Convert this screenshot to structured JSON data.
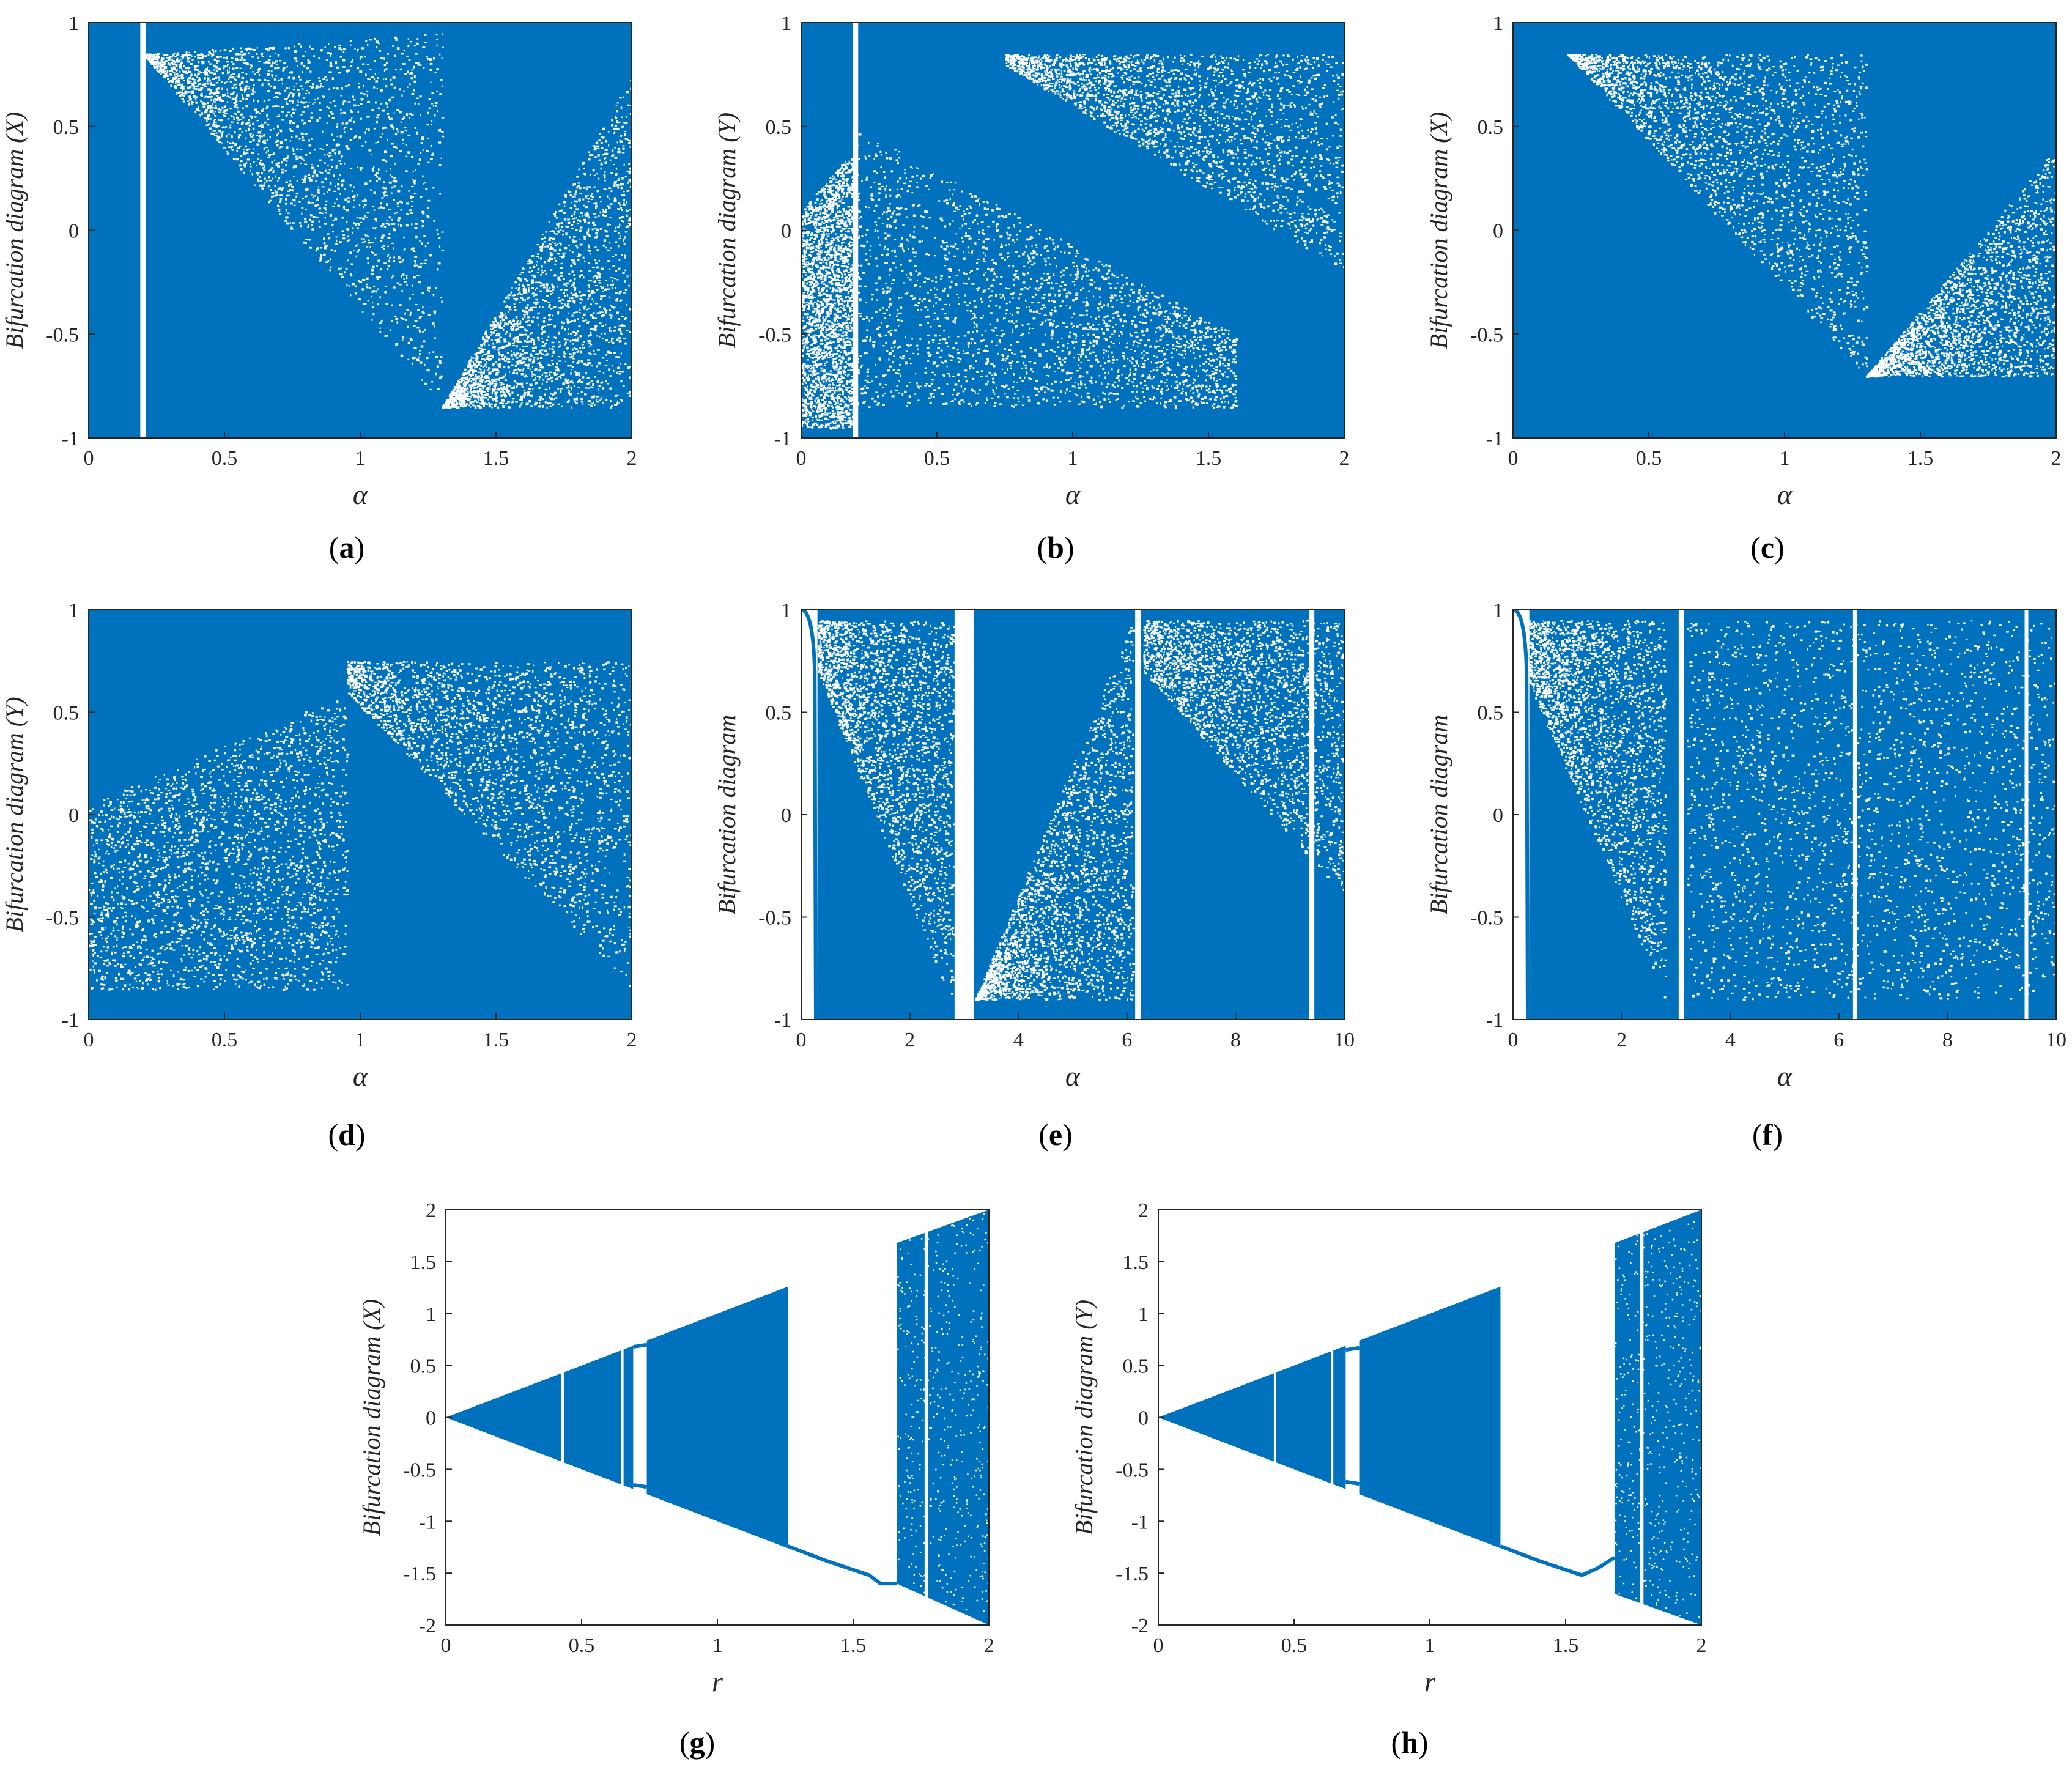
{
  "colors": {
    "points": "#0072bd",
    "gap": "#ffffff",
    "axis": "#262626"
  },
  "chart_data": [
    {
      "id": "a",
      "caption_letter": "a",
      "type": "scatter",
      "ylabel": "Bifurcation diagram (X)",
      "xlabel": "α",
      "xlim": [
        0,
        2
      ],
      "ylim": [
        -1,
        1
      ],
      "xticks": [
        "0",
        "0.5",
        "1",
        "1.5",
        "2"
      ],
      "yticks": [
        "-1",
        "-0.5",
        "0",
        "0.5",
        "1"
      ],
      "dense_range_x": [
        0,
        2
      ],
      "dense_range_y": [
        -1,
        1
      ],
      "gaps_x": [
        0.2
      ],
      "lighter_regions": [
        {
          "x": [
            0.2,
            1.3
          ],
          "y_top": [
            0.85,
            0.95
          ],
          "y_bottom": [
            0.85,
            -0.85
          ]
        },
        {
          "x": [
            1.3,
            2.0
          ],
          "y_top": [
            -0.85,
            0.75
          ],
          "y_bottom": [
            -0.85,
            -0.85
          ]
        }
      ]
    },
    {
      "id": "b",
      "caption_letter": "b",
      "type": "scatter",
      "ylabel": "Bifurcation diagram (Y)",
      "xlabel": "α",
      "xlim": [
        0,
        2
      ],
      "ylim": [
        -1,
        1
      ],
      "xticks": [
        "0",
        "0.5",
        "1",
        "1.5",
        "2"
      ],
      "yticks": [
        "-1",
        "-0.5",
        "0",
        "0.5",
        "1"
      ],
      "gaps_x": [
        0.2
      ],
      "lighter_regions": [
        {
          "x": [
            0.0,
            0.2
          ],
          "y_top": [
            0.1,
            0.4
          ],
          "y_bottom": [
            -0.95,
            -0.95
          ]
        },
        {
          "x": [
            0.75,
            2.0
          ],
          "y_top": [
            0.85,
            0.85
          ],
          "y_bottom": [
            0.8,
            -0.2
          ]
        },
        {
          "x": [
            0.2,
            1.6
          ],
          "y_top": [
            0.5,
            -0.5
          ],
          "y_bottom": [
            -0.85,
            -0.85
          ]
        }
      ]
    },
    {
      "id": "c",
      "caption_letter": "c",
      "type": "scatter",
      "ylabel": "Bifurcation diagram (X)",
      "xlabel": "α",
      "xlim": [
        0,
        2
      ],
      "ylim": [
        -1,
        1
      ],
      "xticks": [
        "0",
        "0.5",
        "1",
        "1.5",
        "2"
      ],
      "yticks": [
        "-1",
        "-0.5",
        "0",
        "0.5",
        "1"
      ],
      "gaps_x": [],
      "lighter_regions": [
        {
          "x": [
            0.2,
            1.3
          ],
          "y_top": [
            0.85,
            0.85
          ],
          "y_bottom": [
            0.85,
            -0.7
          ]
        },
        {
          "x": [
            1.3,
            2.0
          ],
          "y_top": [
            -0.7,
            0.4
          ],
          "y_bottom": [
            -0.7,
            -0.7
          ]
        }
      ]
    },
    {
      "id": "d",
      "caption_letter": "d",
      "type": "scatter",
      "ylabel": "Bifurcation diagram (Y)",
      "xlabel": "α",
      "xlim": [
        0,
        2
      ],
      "ylim": [
        -1,
        1
      ],
      "xticks": [
        "0",
        "0.5",
        "1",
        "1.5",
        "2"
      ],
      "yticks": [
        "-1",
        "-0.5",
        "0",
        "0.5",
        "1"
      ],
      "gaps_x": [],
      "lighter_regions": [
        {
          "x": [
            0.0,
            0.95
          ],
          "y_top": [
            0.05,
            0.6
          ],
          "y_bottom": [
            -0.85,
            -0.85
          ]
        },
        {
          "x": [
            0.95,
            2.0
          ],
          "y_top": [
            0.75,
            0.75
          ],
          "y_bottom": [
            0.6,
            -0.85
          ]
        }
      ]
    },
    {
      "id": "e",
      "caption_letter": "e",
      "type": "scatter",
      "ylabel": "Bifurcation diagram",
      "xlabel": "α",
      "xlim": [
        0,
        10
      ],
      "ylim": [
        -1,
        1
      ],
      "xticks": [
        "0",
        "2",
        "4",
        "6",
        "8",
        "10"
      ],
      "yticks": [
        "-1",
        "-0.5",
        "0",
        "0.5",
        "1"
      ],
      "gaps_x": [
        3.0,
        6.2,
        9.4
      ],
      "gap_widths": [
        0.35,
        0.1,
        0.1
      ],
      "lighter_regions": [
        {
          "x": [
            0.3,
            2.8
          ],
          "y_top": [
            0.95,
            0.95
          ],
          "y_bottom": [
            0.7,
            -0.95
          ]
        },
        {
          "x": [
            3.2,
            6.1
          ],
          "y_top": [
            -0.9,
            0.95
          ],
          "y_bottom": [
            -0.9,
            -0.9
          ]
        },
        {
          "x": [
            6.3,
            10.0
          ],
          "y_top": [
            0.95,
            0.95
          ],
          "y_bottom": [
            0.7,
            -0.4
          ]
        }
      ]
    },
    {
      "id": "f",
      "caption_letter": "f",
      "type": "scatter",
      "ylabel": "Bifurcation diagram",
      "xlabel": "α",
      "xlim": [
        0,
        10
      ],
      "ylim": [
        -1,
        1
      ],
      "xticks": [
        "0",
        "2",
        "4",
        "6",
        "8",
        "10"
      ],
      "yticks": [
        "-1",
        "-0.5",
        "0",
        "0.5",
        "1"
      ],
      "gaps_x": [
        3.1,
        6.3,
        9.45
      ],
      "gap_widths": [
        0.1,
        0.08,
        0.06
      ],
      "lighter_regions": [
        {
          "x": [
            0.2,
            2.8
          ],
          "y_top": [
            0.95,
            0.95
          ],
          "y_bottom": [
            0.7,
            -0.9
          ]
        },
        {
          "x": [
            3.2,
            10.0
          ],
          "y_top": [
            0.95,
            0.95
          ],
          "y_bottom": [
            -0.9,
            -0.9
          ]
        }
      ]
    },
    {
      "id": "g",
      "caption_letter": "g",
      "type": "scatter",
      "ylabel": "Bifurcation diagram (X)",
      "xlabel": "r",
      "xlim": [
        0,
        2
      ],
      "ylim": [
        -2,
        2
      ],
      "xticks": [
        "0",
        "0.5",
        "1",
        "1.5",
        "2"
      ],
      "yticks": [
        "-2",
        "-1.5",
        "-1",
        "-0.5",
        "0",
        "0.5",
        "1",
        "1.5",
        "2"
      ],
      "triangle_slope": 1.0,
      "chaotic_band_x": [
        0,
        1.26
      ],
      "window_x": [
        0.69,
        0.74
      ],
      "window_branch_y": [
        0.68,
        -0.65
      ],
      "thin_gaps_x": [
        0.43,
        0.65
      ],
      "fixed_branch": {
        "x": [
          1.26,
          1.4,
          1.56,
          1.6,
          1.66
        ],
        "y": [
          -1.24,
          -1.38,
          -1.52,
          -1.6,
          -1.6
        ]
      },
      "second_band_x": [
        1.66,
        2.0
      ],
      "second_band_top": [
        1.68,
        2.0
      ],
      "second_band_bottom": [
        -1.6,
        -2.0
      ],
      "second_band_gap_x": [
        1.77
      ]
    },
    {
      "id": "h",
      "caption_letter": "h",
      "type": "scatter",
      "ylabel": "Bifurcation diagram (Y)",
      "xlabel": "r",
      "xlim": [
        0,
        2
      ],
      "ylim": [
        -2,
        2
      ],
      "xticks": [
        "0",
        "0.5",
        "1",
        "1.5",
        "2"
      ],
      "yticks": [
        "-2",
        "-1.5",
        "-1",
        "-0.5",
        "0",
        "0.5",
        "1",
        "1.5",
        "2"
      ],
      "triangle_slope": 1.0,
      "chaotic_band_x": [
        0,
        1.26
      ],
      "window_x": [
        0.69,
        0.74
      ],
      "window_branch_y": [
        0.65,
        -0.62
      ],
      "thin_gaps_x": [
        0.43,
        0.64
      ],
      "fixed_branch": {
        "x": [
          1.26,
          1.4,
          1.56,
          1.62,
          1.68
        ],
        "y": [
          -1.24,
          -1.38,
          -1.52,
          -1.45,
          -1.35
        ]
      },
      "second_band_x": [
        1.68,
        2.0
      ],
      "second_band_top": [
        1.68,
        2.0
      ],
      "second_band_bottom": [
        -1.7,
        -2.0
      ],
      "second_band_gap_x": [
        1.78
      ]
    }
  ]
}
